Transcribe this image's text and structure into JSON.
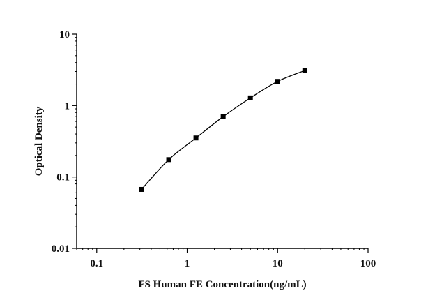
{
  "chart_data": {
    "type": "scatter",
    "title": "",
    "xlabel": "FS Human FE Concentration(ng/mL)",
    "ylabel": "Optical Density",
    "x_scale": "log",
    "y_scale": "log",
    "xlim": [
      0.06,
      100
    ],
    "ylim": [
      0.01,
      10
    ],
    "x_ticks": [
      0.1,
      1,
      10,
      100
    ],
    "x_tick_labels": [
      "0.1",
      "1",
      "10",
      "100"
    ],
    "y_ticks": [
      0.01,
      0.1,
      1,
      10
    ],
    "y_tick_labels": [
      "0.01",
      "0.1",
      "1",
      "10"
    ],
    "grid": false,
    "legend": "none",
    "fit_line": true,
    "series": [
      {
        "x": [
          0.3125,
          0.625,
          1.25,
          2.5,
          5,
          10,
          20
        ],
        "y": [
          0.067,
          0.175,
          0.352,
          0.7,
          1.28,
          2.18,
          3.1
        ],
        "marker": "square",
        "color": "#000000"
      }
    ]
  }
}
